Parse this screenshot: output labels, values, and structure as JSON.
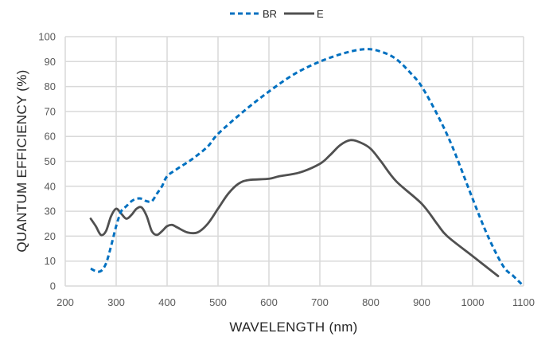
{
  "chart_data": {
    "type": "line",
    "title": "",
    "xlabel": "WAVELENGTH (nm)",
    "ylabel": "QUANTUM EFFICIENCY (%)",
    "xlim": [
      200,
      1100
    ],
    "ylim": [
      0,
      100
    ],
    "xticks": [
      200,
      300,
      400,
      500,
      600,
      700,
      800,
      900,
      1000,
      1100
    ],
    "yticks": [
      0,
      10,
      20,
      30,
      40,
      50,
      60,
      70,
      80,
      90,
      100
    ],
    "grid": true,
    "legend_position": "top-center",
    "series": [
      {
        "name": "BR",
        "color": "#0070C0",
        "style": "dashed",
        "x": [
          250,
          260,
          270,
          280,
          290,
          300,
          310,
          320,
          330,
          340,
          350,
          360,
          370,
          380,
          390,
          400,
          420,
          450,
          480,
          500,
          550,
          600,
          650,
          700,
          750,
          790,
          820,
          850,
          880,
          900,
          930,
          960,
          1000,
          1030,
          1060,
          1080,
          1100
        ],
        "y": [
          7,
          6,
          6,
          9,
          16,
          24,
          30,
          32,
          34,
          35,
          35,
          34,
          34,
          37,
          40,
          44,
          47,
          51,
          56,
          61,
          70,
          78,
          85,
          90,
          93.5,
          95,
          94,
          91,
          85,
          80,
          69,
          56,
          35,
          20,
          8,
          4,
          0
        ]
      },
      {
        "name": "E",
        "color": "#505050",
        "style": "solid",
        "x": [
          250,
          260,
          270,
          280,
          290,
          300,
          310,
          320,
          330,
          340,
          350,
          360,
          370,
          380,
          390,
          400,
          410,
          420,
          440,
          460,
          480,
          500,
          520,
          540,
          560,
          600,
          620,
          660,
          700,
          720,
          740,
          760,
          780,
          800,
          820,
          850,
          900,
          930,
          950,
          1000,
          1050
        ],
        "y": [
          27,
          24,
          20.5,
          22,
          28,
          31,
          29,
          27,
          28.5,
          31,
          31.5,
          28,
          22,
          20.5,
          22,
          24,
          24.5,
          23.5,
          21.5,
          21.5,
          25,
          31,
          37,
          41,
          42.5,
          43,
          44,
          45.5,
          49,
          52.5,
          56.5,
          58.5,
          57.5,
          55,
          50,
          42,
          33,
          25,
          20,
          12,
          4
        ]
      }
    ]
  }
}
